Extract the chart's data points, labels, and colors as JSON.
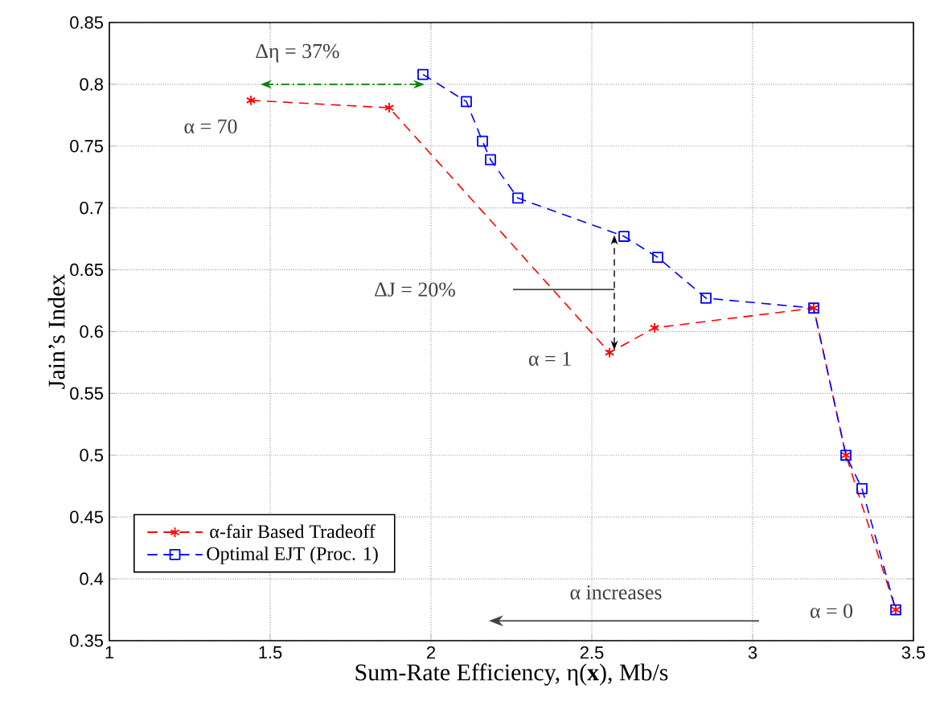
{
  "chart_data": {
    "type": "line",
    "xlabel": "Sum-Rate Efficiency, η(**x**), Mb/s",
    "ylabel": "Jain’s Index",
    "xlim": [
      1,
      3.5
    ],
    "xticks": [
      1,
      1.5,
      2,
      2.5,
      3,
      3.5
    ],
    "ylim": [
      0.35,
      0.85
    ],
    "yticks": [
      0.35,
      0.4,
      0.45,
      0.5,
      0.55,
      0.6,
      0.65,
      0.7,
      0.75,
      0.8,
      0.85
    ],
    "grid": true,
    "legend": "bottom left",
    "line_style": "dashed",
    "series": [
      {
        "name": "α-fair Based Tradeoff",
        "color": "#ff0000",
        "marker": "cross",
        "x": [
          1.44,
          1.87,
          2.555,
          2.695,
          3.19,
          3.29,
          3.445
        ],
        "values": [
          0.787,
          0.781,
          0.583,
          0.603,
          0.619,
          0.5,
          0.375
        ]
      },
      {
        "name": "Optimal EJT (Proc. 1)",
        "color": "#0000ff",
        "marker": "square",
        "x": [
          1.975,
          2.11,
          2.16,
          2.185,
          2.27,
          2.6,
          2.705,
          2.855,
          3.19,
          3.29,
          3.34,
          3.445
        ],
        "values": [
          0.808,
          0.786,
          0.754,
          0.739,
          0.708,
          0.677,
          0.66,
          0.627,
          0.619,
          0.5,
          0.473,
          0.375
        ]
      }
    ],
    "annotations": [
      {
        "text": "Δη = 37%",
        "x": 1.975,
        "y": 0.808
      },
      "α = 70",
      "ΔJ = 20%",
      "α = 1",
      "α increases",
      "α = 0"
    ]
  }
}
